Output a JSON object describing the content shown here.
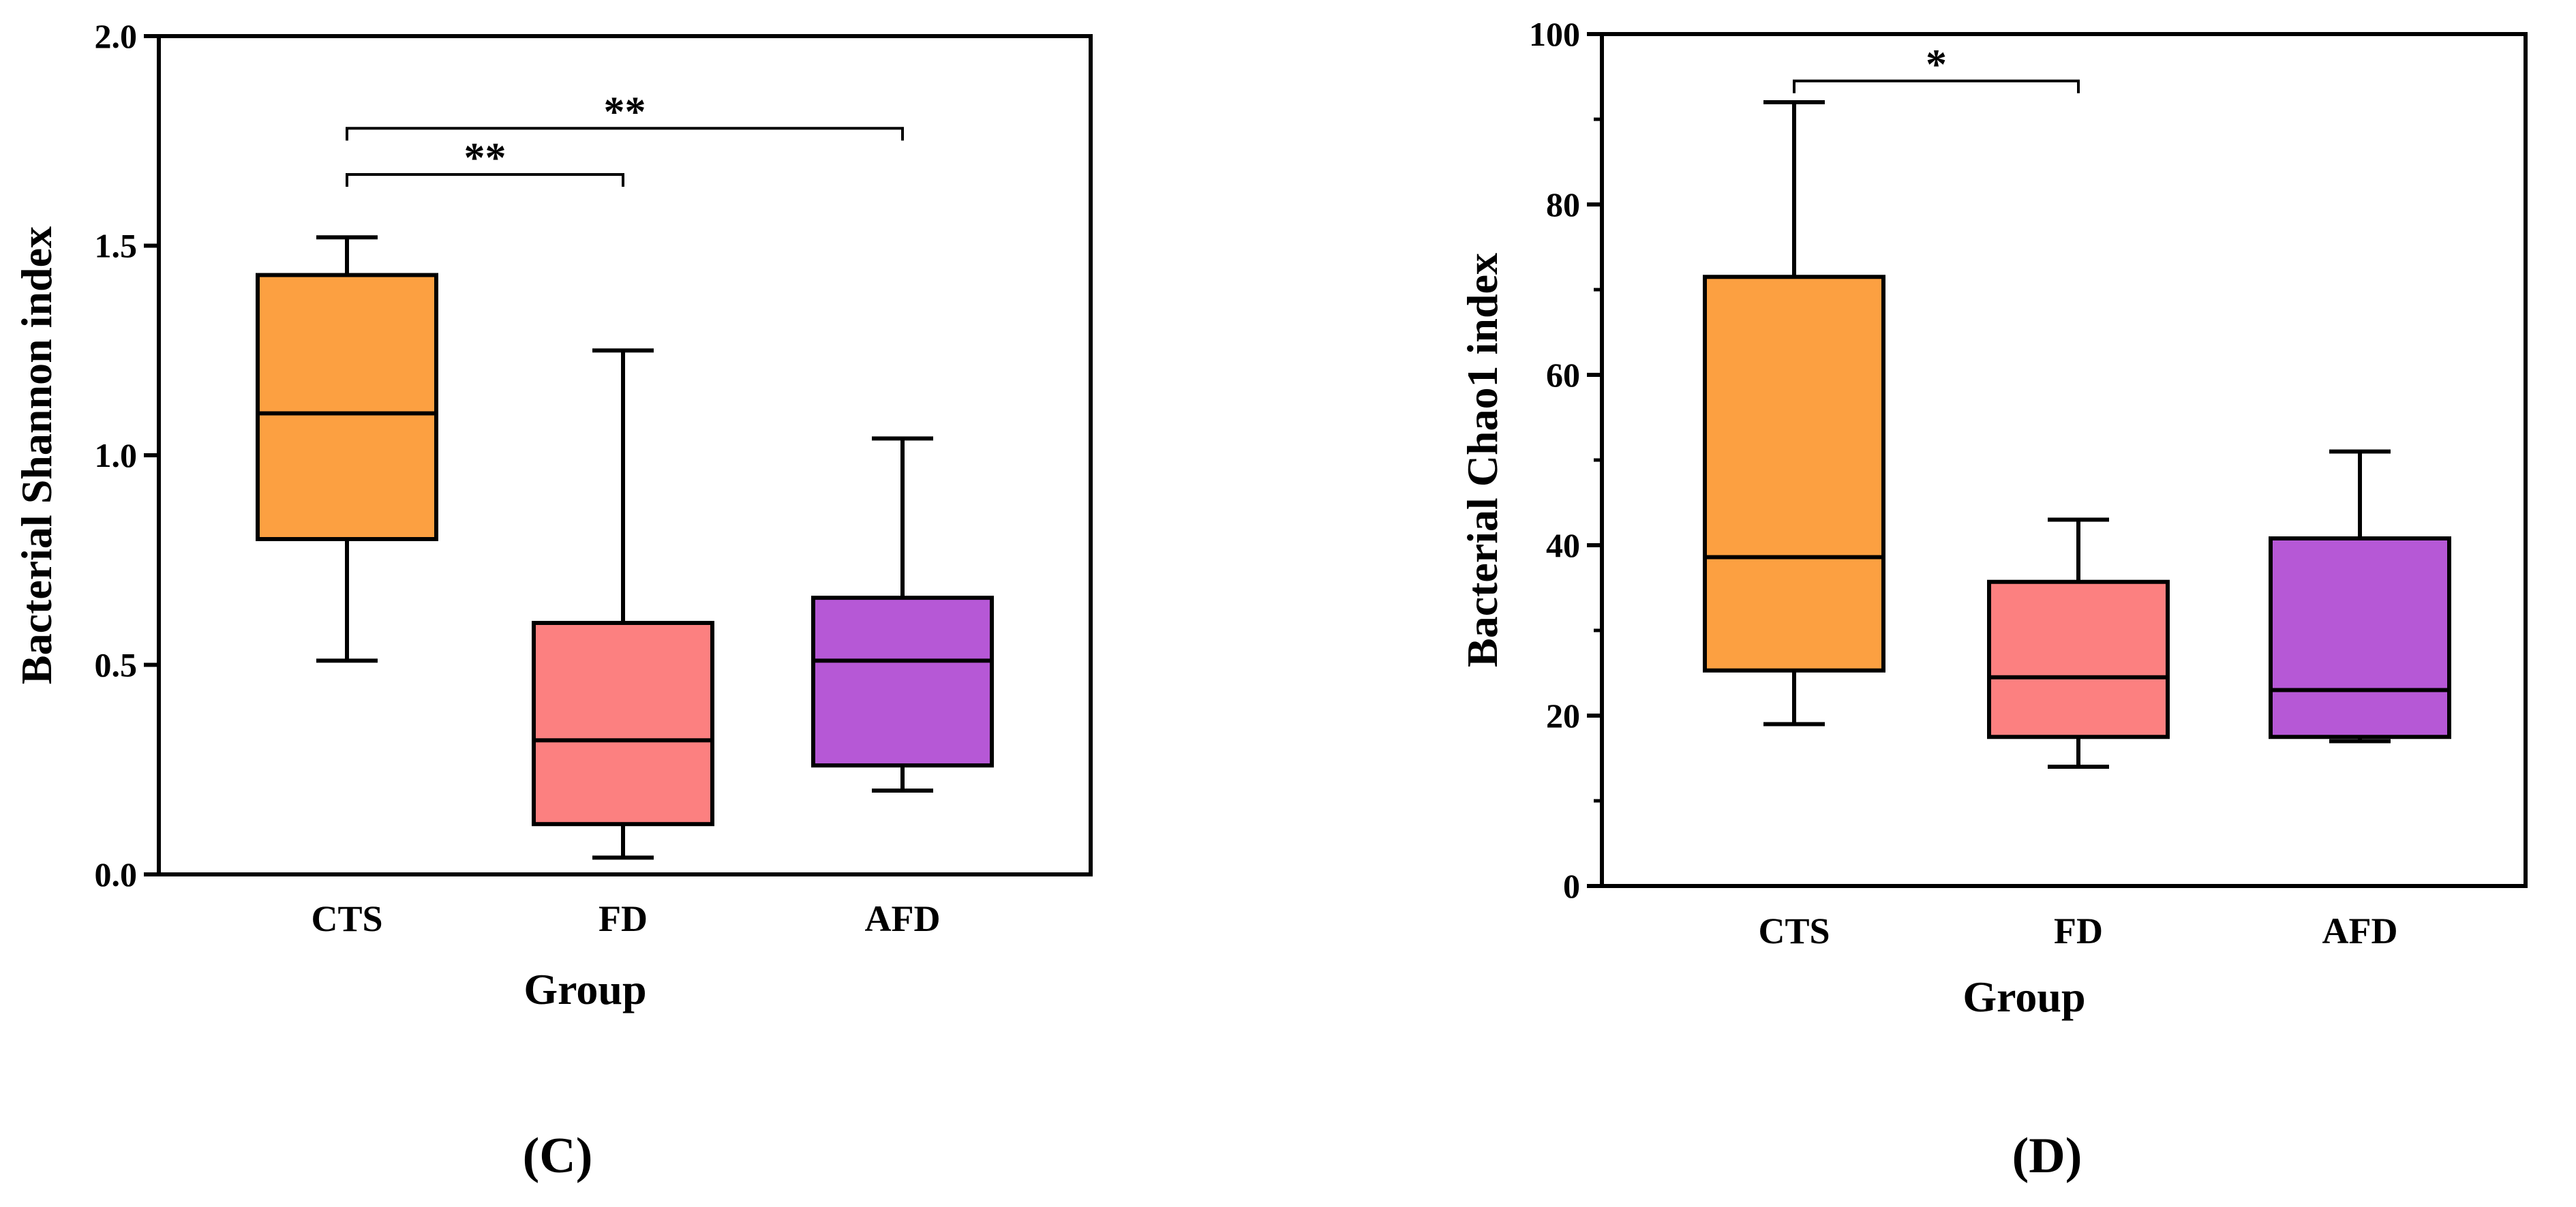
{
  "chart_data": [
    {
      "type": "box",
      "panel": "(C)",
      "panel_letter": "C",
      "xlabel": "Group",
      "ylabel": "Bacterial Shannon index",
      "ylim": [
        0,
        2.0
      ],
      "yticks": [
        "0.0",
        "0.5",
        "1.0",
        "1.5",
        "2.0"
      ],
      "minor_ticks": false,
      "categories": [
        "CTS",
        "FD",
        "AFD"
      ],
      "colors": [
        "#FCA041",
        "#FC8080",
        "#B658D6"
      ],
      "boxes": [
        {
          "group": "CTS",
          "min": 0.51,
          "q1": 0.8,
          "median": 1.1,
          "q3": 1.43,
          "max": 1.52
        },
        {
          "group": "FD",
          "min": 0.04,
          "q1": 0.12,
          "median": 0.32,
          "q3": 0.6,
          "max": 1.25
        },
        {
          "group": "AFD",
          "min": 0.2,
          "q1": 0.26,
          "median": 0.51,
          "q3": 0.66,
          "max": 1.04
        }
      ],
      "significance": [
        {
          "from": "CTS",
          "to": "FD",
          "y": 1.67,
          "label": "**"
        },
        {
          "from": "CTS",
          "to": "AFD",
          "y": 1.78,
          "label": "**"
        }
      ]
    },
    {
      "type": "box",
      "panel": "(D)",
      "panel_letter": "D",
      "xlabel": "Group",
      "ylabel": "Bacterial Chao1 index",
      "ylim": [
        0,
        100
      ],
      "yticks": [
        "0",
        "20",
        "40",
        "60",
        "80",
        "100"
      ],
      "minor_ticks": true,
      "categories": [
        "CTS",
        "FD",
        "AFD"
      ],
      "colors": [
        "#FCA041",
        "#FC8080",
        "#B658D6"
      ],
      "boxes": [
        {
          "group": "CTS",
          "min": 19,
          "q1": 25.3,
          "median": 38.6,
          "q3": 71.5,
          "max": 92
        },
        {
          "group": "FD",
          "min": 14,
          "q1": 17.5,
          "median": 24.5,
          "q3": 35.7,
          "max": 43
        },
        {
          "group": "AFD",
          "min": 17,
          "q1": 17.5,
          "median": 23.0,
          "q3": 40.8,
          "max": 51
        }
      ],
      "significance": [
        {
          "from": "CTS",
          "to": "FD",
          "y": 94.5,
          "label": "*"
        }
      ]
    }
  ]
}
